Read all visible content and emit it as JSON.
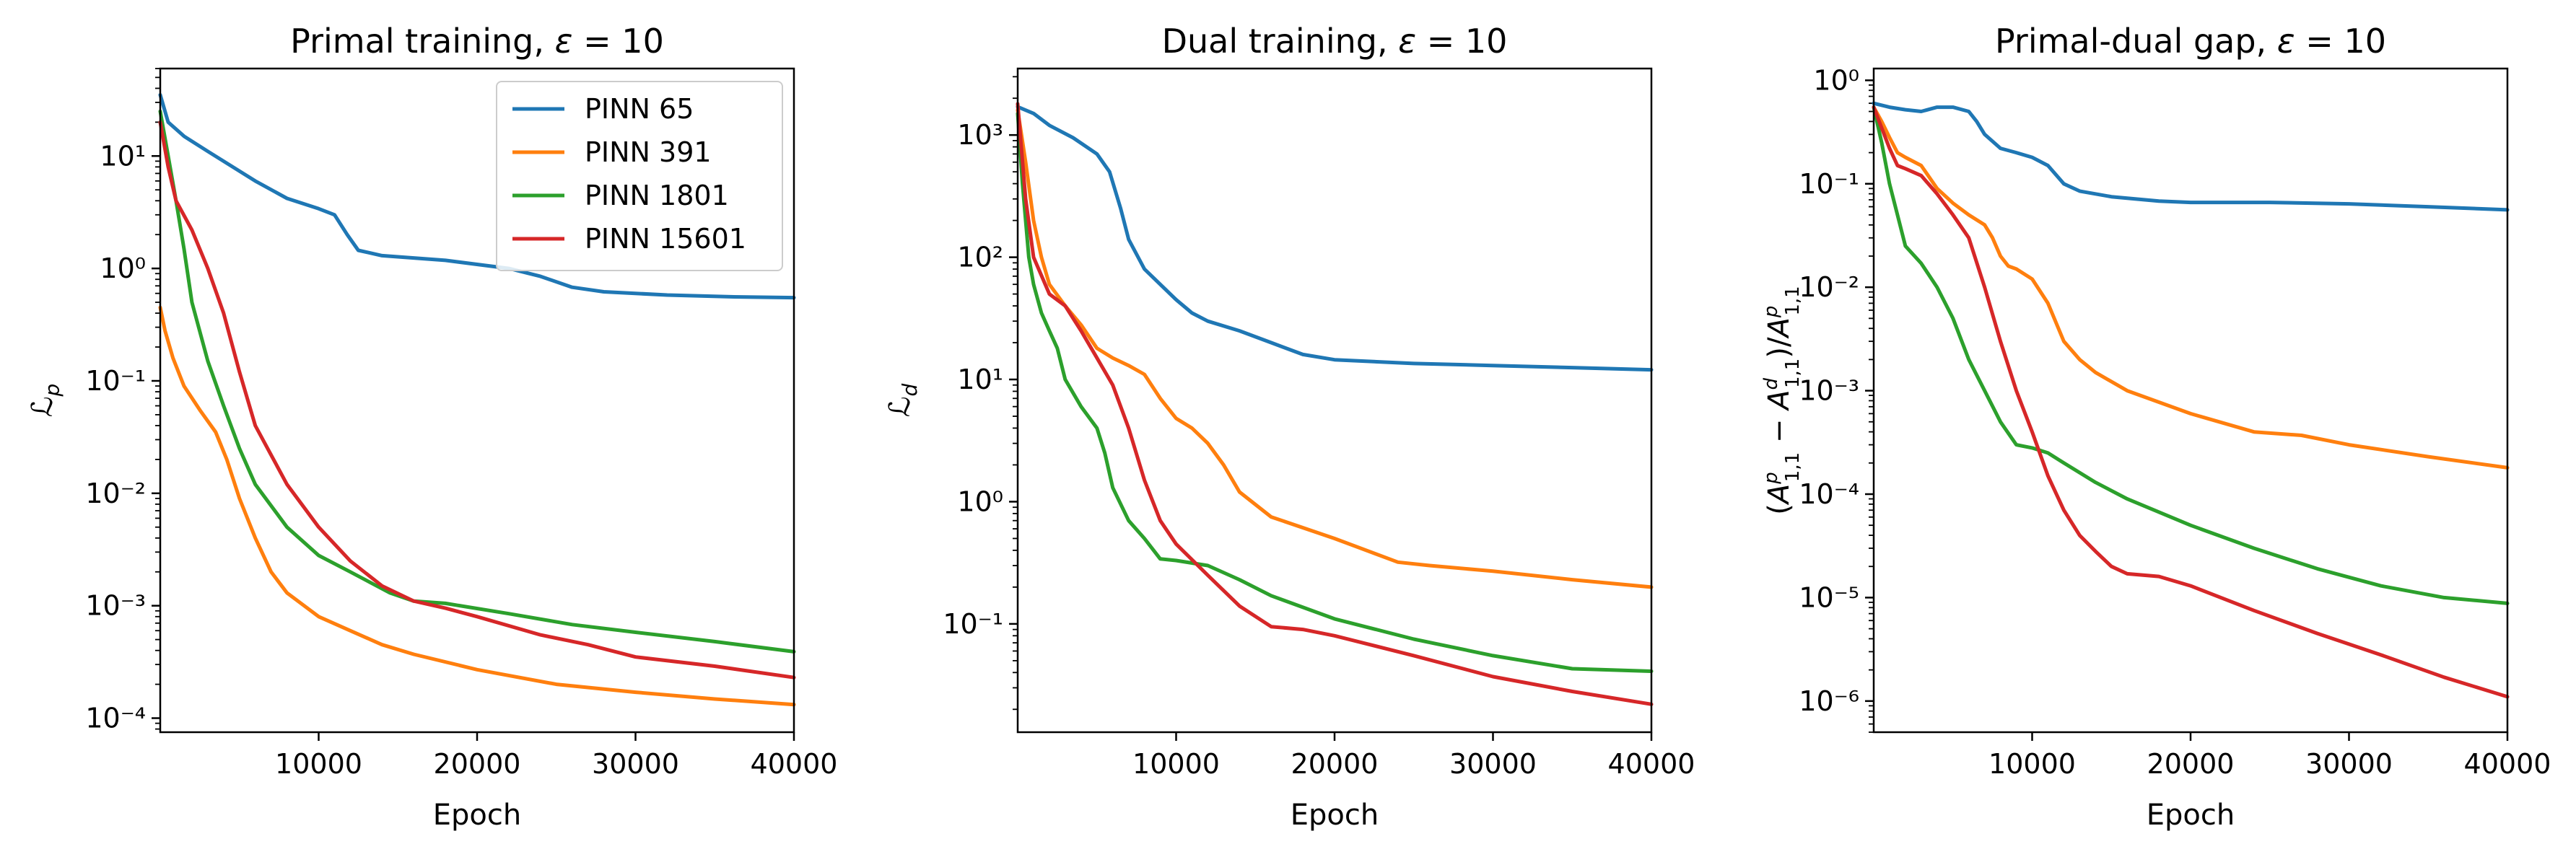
{
  "chart_data": [
    {
      "type": "line",
      "title": "Primal training, ε = 10",
      "xlabel": "Epoch",
      "ylabel": "ℒp",
      "yscale": "log",
      "xlim": [
        0,
        40000
      ],
      "ylim": [
        7.5e-05,
        60
      ],
      "xticks": [
        10000,
        20000,
        30000,
        40000
      ],
      "yticks": [
        0.0001,
        0.001,
        0.01,
        0.1,
        1,
        10
      ],
      "legend": "top-right",
      "grid": false,
      "series": [
        {
          "name": "PINN 65",
          "color": "#1f77b4",
          "x": [
            0,
            500,
            1500,
            3000,
            6000,
            8000,
            10000,
            11000,
            11800,
            12500,
            14000,
            18000,
            22000,
            24000,
            26000,
            28000,
            32000,
            36000,
            40000
          ],
          "y": [
            35,
            20,
            15,
            11,
            6,
            4.2,
            3.4,
            3.0,
            2.0,
            1.45,
            1.3,
            1.18,
            1.0,
            0.85,
            0.68,
            0.62,
            0.58,
            0.56,
            0.55
          ]
        },
        {
          "name": "PINN 391",
          "color": "#ff7f0e",
          "x": [
            0,
            300,
            800,
            1500,
            2500,
            3500,
            4200,
            5000,
            6000,
            7000,
            8000,
            10000,
            12000,
            14000,
            16000,
            20000,
            25000,
            30000,
            35000,
            40000
          ],
          "y": [
            0.45,
            0.28,
            0.16,
            0.09,
            0.055,
            0.035,
            0.02,
            0.009,
            0.004,
            0.002,
            0.0013,
            0.0008,
            0.0006,
            0.00045,
            0.00037,
            0.00027,
            0.0002,
            0.00017,
            0.000148,
            0.000132
          ]
        },
        {
          "name": "PINN 1801",
          "color": "#2ca02c",
          "x": [
            0,
            500,
            1000,
            1500,
            2000,
            3000,
            4000,
            5000,
            6000,
            8000,
            10000,
            12000,
            14500,
            16000,
            18000,
            22000,
            26000,
            30000,
            35000,
            40000
          ],
          "y": [
            25,
            10,
            4,
            1.5,
            0.5,
            0.15,
            0.06,
            0.025,
            0.012,
            0.005,
            0.0028,
            0.002,
            0.0013,
            0.0011,
            0.00105,
            0.00085,
            0.00068,
            0.00058,
            0.00048,
            0.00039
          ]
        },
        {
          "name": "PINN 15601",
          "color": "#d62728",
          "x": [
            0,
            500,
            1000,
            2000,
            3000,
            4000,
            5000,
            6000,
            8000,
            10000,
            12000,
            14000,
            16000,
            18000,
            20000,
            24000,
            27000,
            30000,
            35000,
            40000
          ],
          "y": [
            20,
            8,
            4,
            2.2,
            1.0,
            0.4,
            0.12,
            0.04,
            0.012,
            0.005,
            0.0025,
            0.0015,
            0.0011,
            0.00095,
            0.0008,
            0.00055,
            0.00045,
            0.00035,
            0.00029,
            0.00023
          ]
        }
      ]
    },
    {
      "type": "line",
      "title": "Dual training, ε = 10",
      "xlabel": "Epoch",
      "ylabel": "ℒd",
      "yscale": "log",
      "xlim": [
        0,
        40000
      ],
      "ylim": [
        0.013,
        3500
      ],
      "xticks": [
        10000,
        20000,
        30000,
        40000
      ],
      "yticks": [
        0.1,
        1,
        10,
        100,
        1000
      ],
      "grid": false,
      "series": [
        {
          "name": "PINN 65",
          "color": "#1f77b4",
          "x": [
            0,
            1000,
            2000,
            3500,
            5000,
            5800,
            6500,
            7000,
            8000,
            9000,
            10000,
            11000,
            12000,
            14000,
            16000,
            18000,
            20000,
            25000,
            30000,
            35000,
            40000
          ],
          "y": [
            1700,
            1500,
            1200,
            950,
            700,
            500,
            250,
            140,
            80,
            60,
            45,
            35,
            30,
            25,
            20,
            16,
            14.5,
            13.5,
            13,
            12.5,
            12
          ]
        },
        {
          "name": "PINN 391",
          "color": "#ff7f0e",
          "x": [
            0,
            500,
            1000,
            1500,
            2000,
            3000,
            4000,
            5000,
            6000,
            7000,
            8000,
            9000,
            10000,
            11000,
            12000,
            13000,
            14000,
            16000,
            20000,
            24000,
            26000,
            30000,
            35000,
            40000
          ],
          "y": [
            1600,
            600,
            200,
            100,
            60,
            40,
            28,
            18,
            15,
            13,
            11,
            7,
            4.8,
            4.0,
            3.0,
            2.0,
            1.2,
            0.75,
            0.5,
            0.32,
            0.3,
            0.27,
            0.23,
            0.2
          ]
        },
        {
          "name": "PINN 1801",
          "color": "#2ca02c",
          "x": [
            0,
            300,
            700,
            1000,
            1500,
            2000,
            2500,
            3000,
            4000,
            5000,
            5500,
            6000,
            7000,
            8000,
            9000,
            10000,
            12000,
            14000,
            16000,
            20000,
            25000,
            30000,
            35000,
            40000
          ],
          "y": [
            1500,
            400,
            100,
            60,
            35,
            25,
            18,
            10,
            6,
            4,
            2.5,
            1.3,
            0.7,
            0.5,
            0.34,
            0.33,
            0.3,
            0.23,
            0.17,
            0.11,
            0.075,
            0.055,
            0.043,
            0.041
          ]
        },
        {
          "name": "PINN 15601",
          "color": "#d62728",
          "x": [
            0,
            500,
            1000,
            2000,
            3000,
            4000,
            5000,
            6000,
            7000,
            8000,
            9000,
            10000,
            12000,
            14000,
            16000,
            18000,
            20000,
            25000,
            30000,
            35000,
            40000
          ],
          "y": [
            1800,
            300,
            100,
            50,
            40,
            25,
            15,
            9,
            4,
            1.5,
            0.7,
            0.45,
            0.25,
            0.14,
            0.095,
            0.09,
            0.08,
            0.055,
            0.037,
            0.028,
            0.022
          ]
        }
      ]
    },
    {
      "type": "line",
      "title": "Primal-dual gap, ε = 10",
      "xlabel": "Epoch",
      "ylabel": "(A^p_{1,1} − A^d_{1,1}) / A^p_{1,1}",
      "yscale": "log",
      "xlim": [
        0,
        40000
      ],
      "ylim": [
        5e-07,
        1.3
      ],
      "xticks": [
        10000,
        20000,
        30000,
        40000
      ],
      "yticks": [
        1e-06,
        1e-05,
        0.0001,
        0.001,
        0.01,
        0.1,
        1
      ],
      "grid": false,
      "series": [
        {
          "name": "PINN 65",
          "color": "#1f77b4",
          "x": [
            0,
            1000,
            2000,
            3000,
            4000,
            5000,
            6000,
            6500,
            7000,
            8000,
            9000,
            10000,
            11000,
            12000,
            13000,
            15000,
            18000,
            20000,
            25000,
            30000,
            35000,
            40000
          ],
          "y": [
            0.6,
            0.55,
            0.52,
            0.5,
            0.55,
            0.55,
            0.5,
            0.4,
            0.3,
            0.22,
            0.2,
            0.18,
            0.15,
            0.1,
            0.085,
            0.075,
            0.068,
            0.066,
            0.066,
            0.064,
            0.06,
            0.056
          ]
        },
        {
          "name": "PINN 391",
          "color": "#ff7f0e",
          "x": [
            0,
            500,
            1000,
            1500,
            2000,
            3000,
            4000,
            5000,
            6000,
            7000,
            7500,
            8000,
            8500,
            9000,
            10000,
            11000,
            12000,
            13000,
            14000,
            16000,
            20000,
            24000,
            27000,
            30000,
            35000,
            40000
          ],
          "y": [
            0.55,
            0.4,
            0.28,
            0.2,
            0.18,
            0.15,
            0.09,
            0.065,
            0.05,
            0.04,
            0.03,
            0.02,
            0.016,
            0.015,
            0.012,
            0.007,
            0.003,
            0.002,
            0.0015,
            0.001,
            0.0006,
            0.0004,
            0.00037,
            0.0003,
            0.00023,
            0.00018
          ]
        },
        {
          "name": "PINN 1801",
          "color": "#2ca02c",
          "x": [
            0,
            500,
            1000,
            1500,
            2000,
            3000,
            4000,
            5000,
            6000,
            7000,
            8000,
            9000,
            10000,
            11000,
            12000,
            14000,
            16000,
            20000,
            24000,
            28000,
            32000,
            36000,
            40000
          ],
          "y": [
            0.55,
            0.25,
            0.1,
            0.05,
            0.025,
            0.017,
            0.01,
            0.005,
            0.002,
            0.001,
            0.0005,
            0.0003,
            0.00028,
            0.00025,
            0.0002,
            0.00013,
            9e-05,
            5e-05,
            3e-05,
            1.9e-05,
            1.3e-05,
            1e-05,
            8.8e-06
          ]
        },
        {
          "name": "PINN 15601",
          "color": "#d62728",
          "x": [
            0,
            1000,
            1500,
            2000,
            3000,
            4000,
            5000,
            6000,
            7000,
            8000,
            9000,
            10000,
            11000,
            12000,
            13000,
            14000,
            15000,
            16000,
            18000,
            20000,
            24000,
            28000,
            32000,
            36000,
            40000
          ],
          "y": [
            0.55,
            0.22,
            0.15,
            0.14,
            0.12,
            0.08,
            0.05,
            0.03,
            0.01,
            0.003,
            0.001,
            0.0004,
            0.00015,
            7e-05,
            4e-05,
            2.8e-05,
            2e-05,
            1.7e-05,
            1.6e-05,
            1.3e-05,
            7.5e-06,
            4.5e-06,
            2.8e-06,
            1.7e-06,
            1.1e-06
          ]
        }
      ]
    }
  ]
}
